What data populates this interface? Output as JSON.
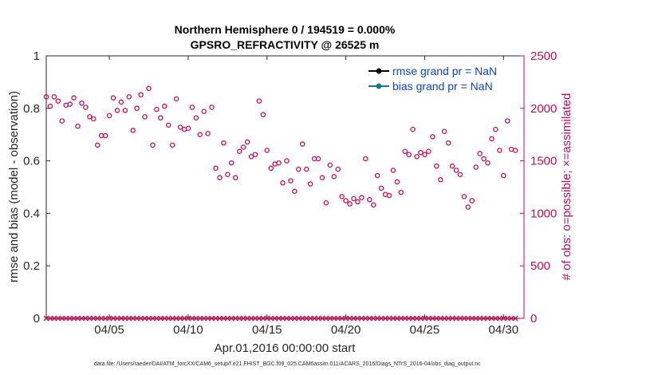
{
  "chart_data": {
    "type": "scatter",
    "title_line1": "Northern Hemisphere 0 / 194519 = 0.000%",
    "title_line2": "GPSRO_REFRACTIVITY @ 26525 m",
    "xlabel": "Apr.01,2016 00:00:00 start",
    "ylabel_left": "rmse and bias (model - observation)",
    "ylabel_right": "# of obs: o=possible; ×=assimilated",
    "footer": "data file: /Users/raeder/DAI/ATM_forcXX/CAM6_setup/f.e21.FHIST_BGC.f09_025.CAM6assim.011/ACARS_2016/Diags_NTrS_2016-04/obs_diag_output.nc",
    "xlim": [
      1,
      31.3
    ],
    "ylim_left": [
      0,
      1
    ],
    "ylim_right": [
      0,
      2500
    ],
    "left_ticks": [
      "0",
      "0.2",
      "0.4",
      "0.6",
      "0.8",
      "1"
    ],
    "left_tick_values": [
      0,
      0.2,
      0.4,
      0.6,
      0.8,
      1
    ],
    "right_ticks": [
      "0",
      "500",
      "1000",
      "1500",
      "2000",
      "2500"
    ],
    "right_tick_values": [
      0,
      500,
      1000,
      1500,
      2000,
      2500
    ],
    "x_ticks": [
      "04/05",
      "04/10",
      "04/15",
      "04/20",
      "04/25",
      "04/30"
    ],
    "x_tick_values": [
      5,
      10,
      15,
      20,
      25,
      30
    ],
    "legend": [
      {
        "label": "rmse grand pr = NaN",
        "color": "#000000"
      },
      {
        "label": "bias grand pr = NaN",
        "color": "#0f7f7f"
      }
    ],
    "colors": {
      "obs": "#cc0a55",
      "axis": "#262626",
      "legend_text": "#0a3fd9"
    },
    "possible": {
      "x": [
        1.0,
        1.25,
        1.5,
        1.75,
        2.0,
        2.25,
        2.5,
        2.75,
        3.0,
        3.25,
        3.5,
        3.75,
        4.0,
        4.25,
        4.5,
        4.75,
        5.0,
        5.25,
        5.5,
        5.75,
        6.0,
        6.25,
        6.5,
        6.75,
        7.0,
        7.25,
        7.5,
        7.75,
        8.0,
        8.25,
        8.5,
        8.75,
        9.0,
        9.25,
        9.5,
        9.75,
        10.0,
        10.25,
        10.5,
        10.75,
        11.0,
        11.25,
        11.5,
        11.75,
        12.0,
        12.25,
        12.5,
        12.75,
        13.0,
        13.25,
        13.5,
        13.75,
        14.0,
        14.25,
        14.5,
        14.75,
        15.0,
        15.25,
        15.5,
        15.75,
        16.0,
        16.25,
        16.5,
        16.75,
        17.0,
        17.25,
        17.5,
        17.75,
        18.0,
        18.25,
        18.5,
        18.75,
        19.0,
        19.25,
        19.5,
        19.75,
        20.0,
        20.25,
        20.5,
        20.75,
        21.0,
        21.25,
        21.5,
        21.75,
        22.0,
        22.25,
        22.5,
        22.75,
        23.0,
        23.25,
        23.5,
        23.75,
        24.0,
        24.25,
        24.5,
        24.75,
        25.0,
        25.25,
        25.5,
        25.75,
        26.0,
        26.25,
        26.5,
        26.75,
        27.0,
        27.25,
        27.5,
        27.75,
        28.0,
        28.25,
        28.5,
        28.75,
        29.0,
        29.25,
        29.5,
        29.75,
        30.0,
        30.25,
        30.5,
        30.75
      ],
      "y": [
        2110,
        2020,
        2110,
        2070,
        1880,
        2030,
        2040,
        2100,
        1830,
        2050,
        2010,
        1920,
        1900,
        1650,
        1740,
        1740,
        1930,
        2100,
        1980,
        2060,
        1980,
        2110,
        1790,
        2000,
        2130,
        1920,
        2190,
        1650,
        1990,
        1910,
        2020,
        1840,
        1650,
        2090,
        1820,
        1800,
        1810,
        2010,
        1910,
        1750,
        1970,
        1760,
        2010,
        1430,
        1340,
        1670,
        1370,
        1480,
        1340,
        1590,
        1630,
        1680,
        1540,
        1560,
        2070,
        1940,
        1600,
        1430,
        1470,
        1480,
        1290,
        1500,
        1310,
        1210,
        1420,
        1660,
        1420,
        1280,
        1520,
        1520,
        1340,
        1100,
        1460,
        1350,
        1420,
        1160,
        1120,
        1090,
        1140,
        1110,
        1150,
        1520,
        1130,
        1080,
        1360,
        1240,
        1180,
        1170,
        1410,
        1300,
        1200,
        1590,
        1560,
        1800,
        1540,
        1580,
        1560,
        1590,
        1730,
        1450,
        1320,
        1780,
        1670,
        1450,
        1410,
        1370,
        1160,
        1060,
        1120,
        1440,
        1570,
        1520,
        1480,
        1710,
        1800,
        1600,
        1360,
        1880,
        1610,
        1600
      ]
    },
    "assimilated": {
      "x": [
        1.0,
        1.25,
        1.5,
        1.75,
        2.0,
        2.25,
        2.5,
        2.75,
        3.0,
        3.25,
        3.5,
        3.75,
        4.0,
        4.25,
        4.5,
        4.75,
        5.0,
        5.25,
        5.5,
        5.75,
        6.0,
        6.25,
        6.5,
        6.75,
        7.0,
        7.25,
        7.5,
        7.75,
        8.0,
        8.25,
        8.5,
        8.75,
        9.0,
        9.25,
        9.5,
        9.75,
        10.0,
        10.25,
        10.5,
        10.75,
        11.0,
        11.25,
        11.5,
        11.75,
        12.0,
        12.25,
        12.5,
        12.75,
        13.0,
        13.25,
        13.5,
        13.75,
        14.0,
        14.25,
        14.5,
        14.75,
        15.0,
        15.25,
        15.5,
        15.75,
        16.0,
        16.25,
        16.5,
        16.75,
        17.0,
        17.25,
        17.5,
        17.75,
        18.0,
        18.25,
        18.5,
        18.75,
        19.0,
        19.25,
        19.5,
        19.75,
        20.0,
        20.25,
        20.5,
        20.75,
        21.0,
        21.25,
        21.5,
        21.75,
        22.0,
        22.25,
        22.5,
        22.75,
        23.0,
        23.25,
        23.5,
        23.75,
        24.0,
        24.25,
        24.5,
        24.75,
        25.0,
        25.25,
        25.5,
        25.75,
        26.0,
        26.25,
        26.5,
        26.75,
        27.0,
        27.25,
        27.5,
        27.75,
        28.0,
        28.25,
        28.5,
        28.75,
        29.0,
        29.25,
        29.5,
        29.75,
        30.0,
        30.25,
        30.5,
        30.75
      ],
      "y": [
        0,
        0,
        0,
        0,
        0,
        0,
        0,
        0,
        0,
        0,
        0,
        0,
        0,
        0,
        0,
        0,
        0,
        0,
        0,
        0,
        0,
        0,
        0,
        0,
        0,
        0,
        0,
        0,
        0,
        0,
        0,
        0,
        0,
        0,
        0,
        0,
        0,
        0,
        0,
        0,
        0,
        0,
        0,
        0,
        0,
        0,
        0,
        0,
        0,
        0,
        0,
        0,
        0,
        0,
        0,
        0,
        0,
        0,
        0,
        0,
        0,
        0,
        0,
        0,
        0,
        0,
        0,
        0,
        0,
        0,
        0,
        0,
        0,
        0,
        0,
        0,
        0,
        0,
        0,
        0,
        0,
        0,
        0,
        0,
        0,
        0,
        0,
        0,
        0,
        0,
        0,
        0,
        0,
        0,
        0,
        0,
        0,
        0,
        0,
        0,
        0,
        0,
        0,
        0,
        0,
        0,
        0,
        0,
        0,
        0,
        0,
        0,
        0,
        0,
        0,
        0,
        0,
        0,
        0,
        0
      ]
    }
  }
}
